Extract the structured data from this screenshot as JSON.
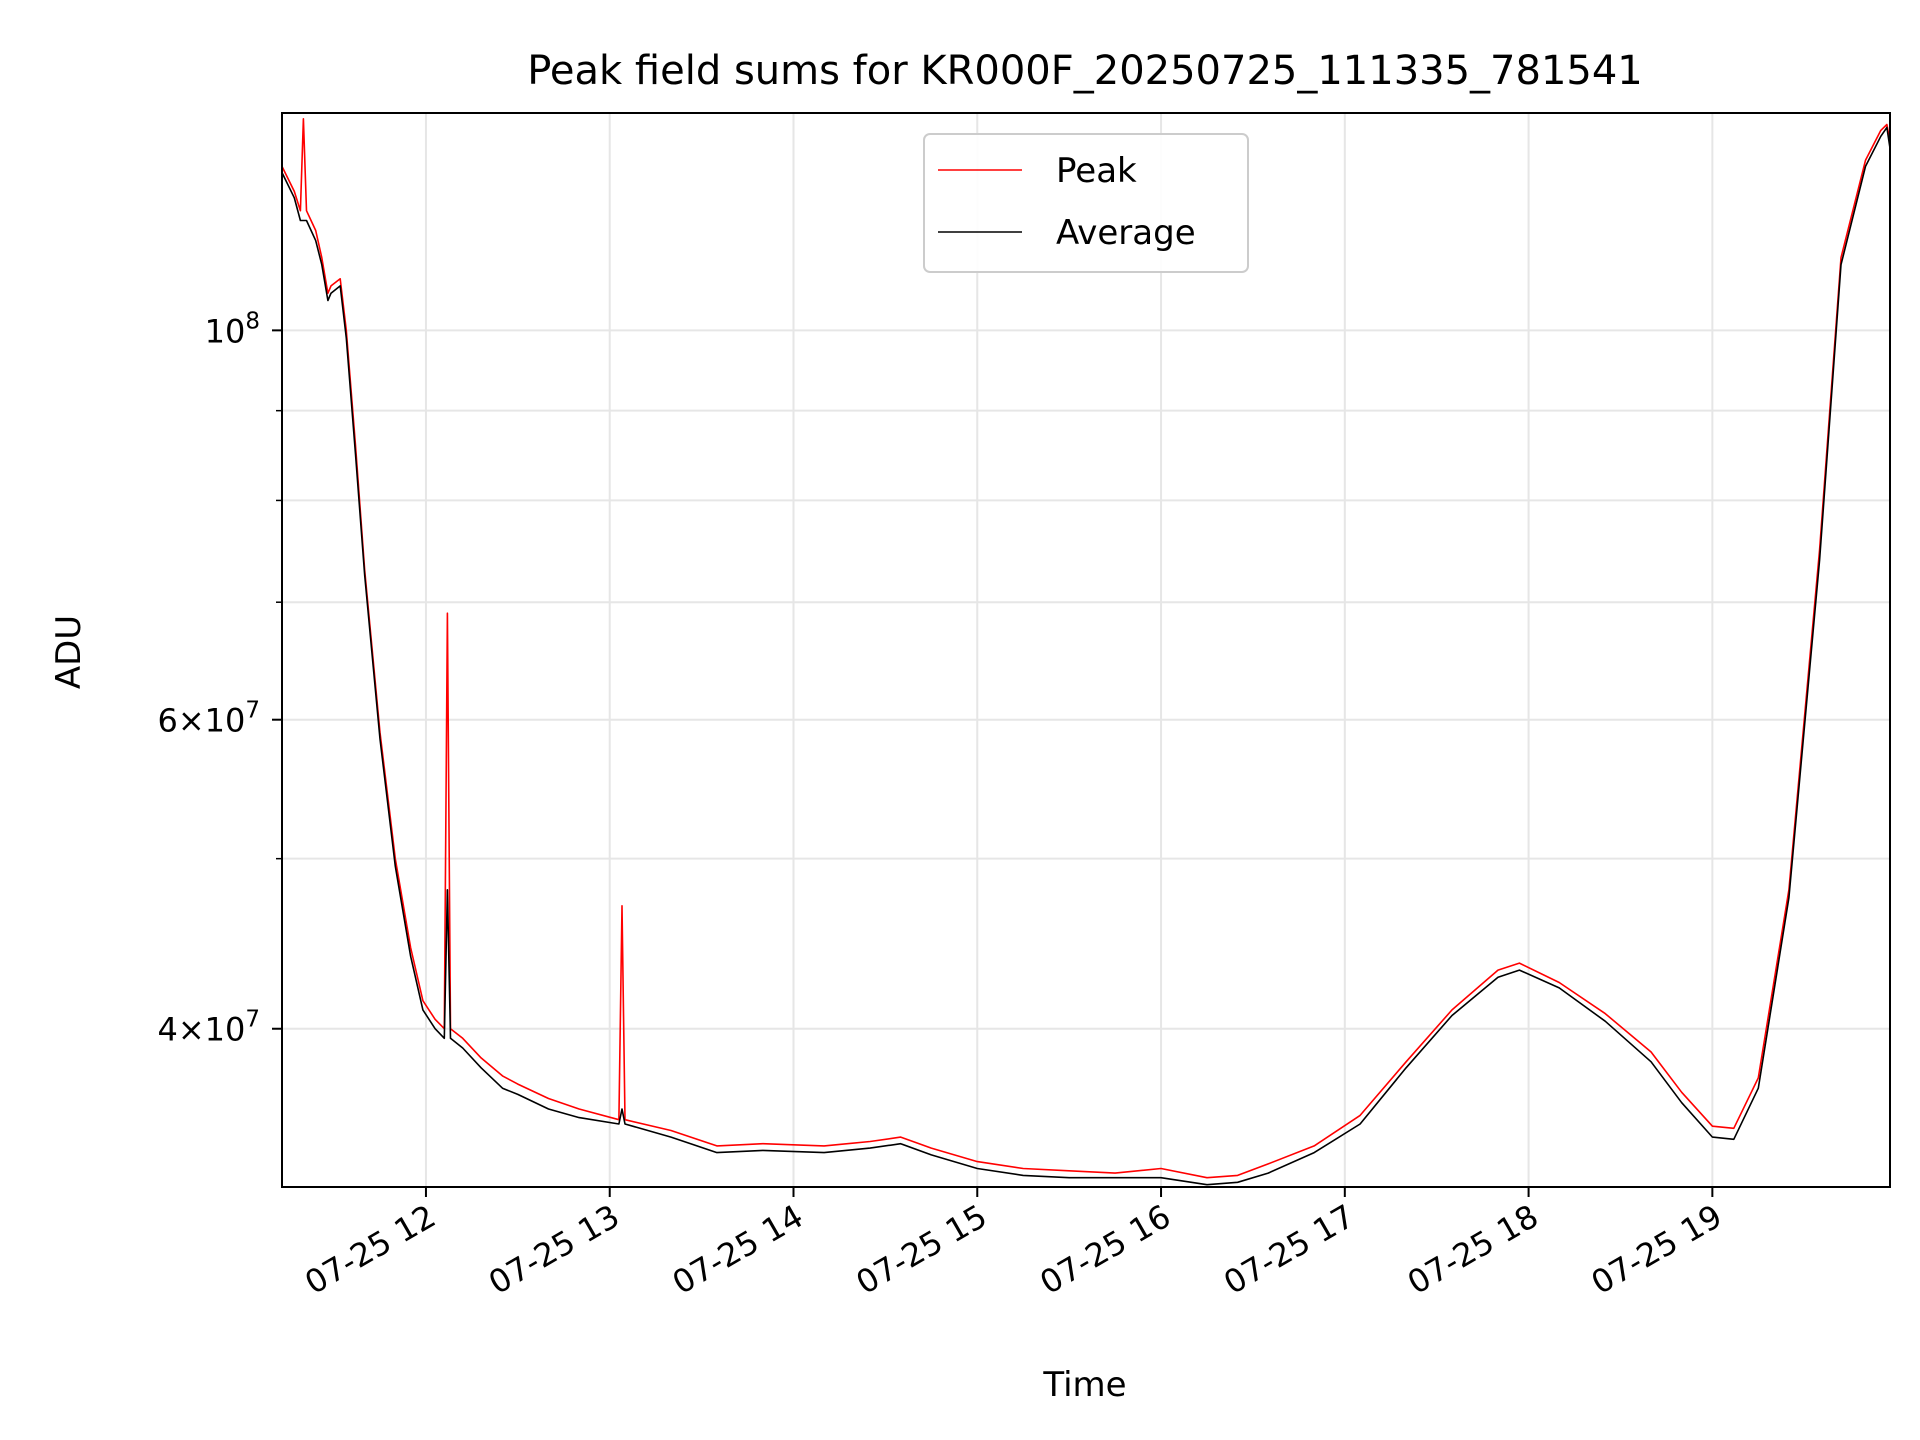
{
  "chart_data": {
    "type": "line",
    "title": "Peak field sums for KR000F_20250725_111335_781541",
    "xlabel": "Time",
    "ylabel": "ADU",
    "yscale": "log",
    "xlim": [
      "2025-07-25 11:13",
      "2025-07-25 19:58"
    ],
    "ylim": [
      32500000,
      133000000
    ],
    "grid": true,
    "legend_position": "upper center",
    "x_ticks": [
      {
        "value": "2025-07-25 12:00",
        "label": "07-25 12"
      },
      {
        "value": "2025-07-25 13:00",
        "label": "07-25 13"
      },
      {
        "value": "2025-07-25 14:00",
        "label": "07-25 14"
      },
      {
        "value": "2025-07-25 15:00",
        "label": "07-25 15"
      },
      {
        "value": "2025-07-25 16:00",
        "label": "07-25 16"
      },
      {
        "value": "2025-07-25 17:00",
        "label": "07-25 17"
      },
      {
        "value": "2025-07-25 18:00",
        "label": "07-25 18"
      },
      {
        "value": "2025-07-25 19:00",
        "label": "07-25 19"
      }
    ],
    "y_ticks": [
      {
        "value": 40000000,
        "mantissa": "4",
        "exponent": "7"
      },
      {
        "value": 60000000,
        "mantissa": "6",
        "exponent": "7"
      },
      {
        "value": 100000000,
        "mantissa": "",
        "exponent": "8"
      }
    ],
    "y_minor_ticks": [
      50000000,
      70000000,
      80000000,
      90000000
    ],
    "series": [
      {
        "name": "Peak",
        "color": "#ff0000",
        "x": [
          "2025-07-25 11:13",
          "2025-07-25 11:17",
          "2025-07-25 11:19",
          "2025-07-25 11:20",
          "2025-07-25 11:21",
          "2025-07-25 11:24",
          "2025-07-25 11:26",
          "2025-07-25 11:28",
          "2025-07-25 11:29",
          "2025-07-25 11:32",
          "2025-07-25 11:34",
          "2025-07-25 11:37",
          "2025-07-25 11:40",
          "2025-07-25 11:45",
          "2025-07-25 11:50",
          "2025-07-25 11:55",
          "2025-07-25 11:59",
          "2025-07-25 12:03",
          "2025-07-25 12:06",
          "2025-07-25 12:07",
          "2025-07-25 12:08",
          "2025-07-25 12:12",
          "2025-07-25 12:18",
          "2025-07-25 12:25",
          "2025-07-25 12:30",
          "2025-07-25 12:40",
          "2025-07-25 12:50",
          "2025-07-25 13:03",
          "2025-07-25 13:04",
          "2025-07-25 13:05",
          "2025-07-25 13:20",
          "2025-07-25 13:35",
          "2025-07-25 13:50",
          "2025-07-25 14:10",
          "2025-07-25 14:25",
          "2025-07-25 14:35",
          "2025-07-25 14:45",
          "2025-07-25 15:00",
          "2025-07-25 15:15",
          "2025-07-25 15:30",
          "2025-07-25 15:45",
          "2025-07-25 16:00",
          "2025-07-25 16:15",
          "2025-07-25 16:25",
          "2025-07-25 16:35",
          "2025-07-25 16:50",
          "2025-07-25 17:05",
          "2025-07-25 17:20",
          "2025-07-25 17:35",
          "2025-07-25 17:50",
          "2025-07-25 17:57",
          "2025-07-25 18:10",
          "2025-07-25 18:25",
          "2025-07-25 18:40",
          "2025-07-25 18:50",
          "2025-07-25 19:00",
          "2025-07-25 19:07",
          "2025-07-25 19:15",
          "2025-07-25 19:25",
          "2025-07-25 19:35",
          "2025-07-25 19:42",
          "2025-07-25 19:50",
          "2025-07-25 19:55",
          "2025-07-25 19:57",
          "2025-07-25 19:58"
        ],
        "values": [
          124000000,
          120000000,
          117000000,
          132000000,
          117000000,
          114000000,
          110000000,
          105000000,
          106000000,
          107000000,
          100000000,
          86000000,
          73000000,
          59000000,
          50000000,
          44500000,
          41500000,
          40500000,
          40000000,
          69000000,
          40000000,
          39500000,
          38500000,
          37600000,
          37200000,
          36500000,
          36000000,
          35500000,
          47000000,
          35500000,
          35000000,
          34300000,
          34400000,
          34300000,
          34500000,
          34700000,
          34200000,
          33600000,
          33300000,
          33200000,
          33100000,
          33300000,
          32900000,
          33000000,
          33500000,
          34300000,
          35700000,
          38300000,
          41000000,
          43200000,
          43600000,
          42500000,
          40800000,
          38800000,
          36800000,
          35200000,
          35100000,
          37500000,
          48000000,
          75000000,
          110000000,
          125000000,
          130000000,
          131000000,
          128000000
        ]
      },
      {
        "name": "Average",
        "color": "#000000",
        "x": [
          "2025-07-25 11:13",
          "2025-07-25 11:17",
          "2025-07-25 11:19",
          "2025-07-25 11:21",
          "2025-07-25 11:24",
          "2025-07-25 11:26",
          "2025-07-25 11:28",
          "2025-07-25 11:29",
          "2025-07-25 11:32",
          "2025-07-25 11:34",
          "2025-07-25 11:37",
          "2025-07-25 11:40",
          "2025-07-25 11:45",
          "2025-07-25 11:50",
          "2025-07-25 11:55",
          "2025-07-25 11:59",
          "2025-07-25 12:03",
          "2025-07-25 12:06",
          "2025-07-25 12:07",
          "2025-07-25 12:08",
          "2025-07-25 12:12",
          "2025-07-25 12:18",
          "2025-07-25 12:25",
          "2025-07-25 12:30",
          "2025-07-25 12:40",
          "2025-07-25 12:50",
          "2025-07-25 13:03",
          "2025-07-25 13:04",
          "2025-07-25 13:05",
          "2025-07-25 13:20",
          "2025-07-25 13:35",
          "2025-07-25 13:50",
          "2025-07-25 14:10",
          "2025-07-25 14:25",
          "2025-07-25 14:35",
          "2025-07-25 14:45",
          "2025-07-25 15:00",
          "2025-07-25 15:15",
          "2025-07-25 15:30",
          "2025-07-25 15:45",
          "2025-07-25 16:00",
          "2025-07-25 16:15",
          "2025-07-25 16:25",
          "2025-07-25 16:35",
          "2025-07-25 16:50",
          "2025-07-25 17:05",
          "2025-07-25 17:20",
          "2025-07-25 17:35",
          "2025-07-25 17:50",
          "2025-07-25 17:57",
          "2025-07-25 18:10",
          "2025-07-25 18:25",
          "2025-07-25 18:40",
          "2025-07-25 18:50",
          "2025-07-25 19:00",
          "2025-07-25 19:07",
          "2025-07-25 19:15",
          "2025-07-25 19:25",
          "2025-07-25 19:35",
          "2025-07-25 19:42",
          "2025-07-25 19:50",
          "2025-07-25 19:55",
          "2025-07-25 19:57",
          "2025-07-25 19:58"
        ],
        "values": [
          123000000,
          119000000,
          115500000,
          115500000,
          112500000,
          109000000,
          104000000,
          105000000,
          106000000,
          99000000,
          85000000,
          72500000,
          58500000,
          49500000,
          44000000,
          41000000,
          40000000,
          39500000,
          48000000,
          39500000,
          39000000,
          38000000,
          37000000,
          36700000,
          36000000,
          35600000,
          35300000,
          36000000,
          35300000,
          34700000,
          34000000,
          34100000,
          34000000,
          34200000,
          34400000,
          33900000,
          33300000,
          33000000,
          32900000,
          32900000,
          32900000,
          32600000,
          32700000,
          33100000,
          34000000,
          35300000,
          38000000,
          40700000,
          42800000,
          43200000,
          42200000,
          40400000,
          38300000,
          36300000,
          34700000,
          34600000,
          37000000,
          47500000,
          74000000,
          109000000,
          124000000,
          129000000,
          130500000,
          127000000
        ]
      }
    ]
  }
}
